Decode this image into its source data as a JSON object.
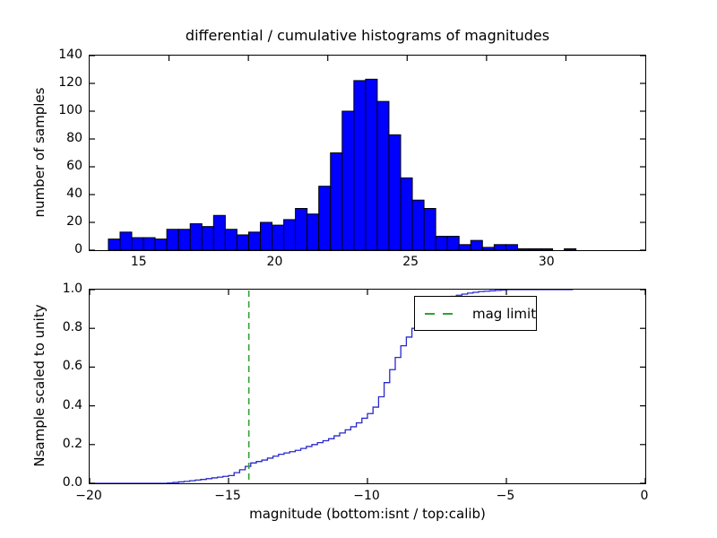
{
  "labels": {
    "title": "differential / cumulative histograms of magnitudes",
    "xlabel": "magnitude (bottom:isnt / top:calib)",
    "top_ylabel": "number of samples",
    "bottom_ylabel": "Nsample scaled to unity",
    "legend_label": "mag limit"
  },
  "colors": {
    "bar_fill": "#0000ff",
    "bar_edge": "#000000",
    "curve": "#2929cc",
    "vline": "#33a033",
    "spine": "#000000",
    "background": "#ffffff"
  },
  "chart_data": [
    {
      "type": "bar",
      "subtype": "differential-histogram",
      "title": "differential / cumulative histograms of magnitudes",
      "xlabel": "magnitude (top:calib)",
      "ylabel": "number of samples",
      "xlim": [
        13.16,
        33.6
      ],
      "ylim": [
        0,
        140
      ],
      "grid": false,
      "bin_start": 13.85,
      "bin_width": 0.43,
      "values": [
        8,
        13,
        9,
        9,
        8,
        15,
        15,
        19,
        17,
        25,
        15,
        11,
        13,
        20,
        18,
        22,
        30,
        26,
        46,
        70,
        100,
        122,
        123,
        107,
        83,
        52,
        36,
        30,
        10,
        10,
        4,
        7,
        2,
        4,
        4,
        1,
        1,
        1,
        0,
        1
      ],
      "xticks": [
        {
          "v": 15,
          "label": "15"
        },
        {
          "v": 20,
          "label": "20"
        },
        {
          "v": 25,
          "label": "25"
        },
        {
          "v": 30,
          "label": "30"
        }
      ],
      "yticks": [
        {
          "v": 0,
          "label": "0"
        },
        {
          "v": 20,
          "label": "20"
        },
        {
          "v": 40,
          "label": "40"
        },
        {
          "v": 60,
          "label": "60"
        },
        {
          "v": 80,
          "label": "80"
        },
        {
          "v": 100,
          "label": "100"
        },
        {
          "v": 120,
          "label": "120"
        },
        {
          "v": 140,
          "label": "140"
        }
      ]
    },
    {
      "type": "line",
      "subtype": "cumulative-step",
      "xlabel": "magnitude (bottom:isnt)",
      "ylabel": "Nsample scaled to unity",
      "xlim": [
        -20,
        0
      ],
      "ylim": [
        0,
        1
      ],
      "grid": false,
      "step_width": 0.2,
      "points": [
        [
          -20,
          0
        ],
        [
          -17.3,
          0
        ],
        [
          -16.6,
          0.01
        ],
        [
          -16.0,
          0.02
        ],
        [
          -15.5,
          0.03
        ],
        [
          -15.0,
          0.04
        ],
        [
          -14.6,
          0.07
        ],
        [
          -14.2,
          0.105
        ],
        [
          -13.8,
          0.12
        ],
        [
          -13.2,
          0.15
        ],
        [
          -12.6,
          0.17
        ],
        [
          -12.0,
          0.2
        ],
        [
          -11.4,
          0.23
        ],
        [
          -11.0,
          0.26
        ],
        [
          -10.5,
          0.3
        ],
        [
          -10.0,
          0.36
        ],
        [
          -9.7,
          0.41
        ],
        [
          -9.4,
          0.52
        ],
        [
          -9.1,
          0.62
        ],
        [
          -8.8,
          0.71
        ],
        [
          -8.4,
          0.8
        ],
        [
          -8.0,
          0.88
        ],
        [
          -7.5,
          0.94
        ],
        [
          -7.0,
          0.965
        ],
        [
          -6.5,
          0.98
        ],
        [
          -6.0,
          0.99
        ],
        [
          -5.5,
          0.995
        ],
        [
          -5.0,
          1.0
        ],
        [
          -2.6,
          1.0
        ]
      ],
      "vline": {
        "x": -14.27,
        "style": "dashed",
        "label": "mag limit"
      },
      "legend": {
        "label": "mag limit",
        "position": "upper right"
      },
      "xticks": [
        {
          "v": -20,
          "label": "−20"
        },
        {
          "v": -15,
          "label": "−15"
        },
        {
          "v": -10,
          "label": "−10"
        },
        {
          "v": -5,
          "label": "−5"
        },
        {
          "v": 0,
          "label": "0"
        }
      ],
      "yticks": [
        {
          "v": 0.0,
          "label": "0.0"
        },
        {
          "v": 0.2,
          "label": "0.2"
        },
        {
          "v": 0.4,
          "label": "0.4"
        },
        {
          "v": 0.6,
          "label": "0.6"
        },
        {
          "v": 0.8,
          "label": "0.8"
        },
        {
          "v": 1.0,
          "label": "1.0"
        }
      ]
    }
  ]
}
